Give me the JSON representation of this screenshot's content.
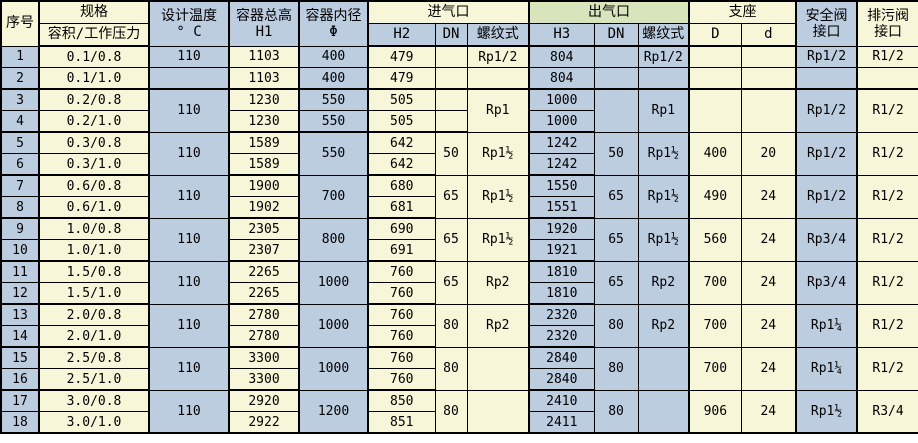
{
  "colors": {
    "cell_yellow": "#F8F6D8",
    "cell_blue": "#BDCDE0",
    "header_green": "#D8E4BC",
    "border": "#000000"
  },
  "table": {
    "header": {
      "serial": "序号",
      "spec_group": "规格",
      "spec_sub": "容积/工作压力",
      "temp_line1": "设计温度",
      "temp_line2": "° C",
      "height_line1": "容器总高",
      "height_line2": "H1",
      "diameter_line1": "容器内径",
      "diameter_line2": "Φ",
      "inlet_group": "进气口",
      "inlet_h2": "H2",
      "inlet_dn": "DN",
      "inlet_thread": "螺纹式",
      "outlet_group": "出气口",
      "outlet_h3": "H3",
      "outlet_dn": "DN",
      "outlet_thread": "螺纹式",
      "support_group": "支座",
      "support_D": "D",
      "support_d": "d",
      "safety_line1": "安全阀",
      "safety_line2": "接口",
      "drain_line1": "排污阀",
      "drain_line2": "接口"
    },
    "pairs": [
      {
        "merge_group": false,
        "merge_phi": false,
        "unmerged_keys": [
          "temp",
          "dn_in",
          "thread_in",
          "dn_out",
          "thread_out",
          "D",
          "d",
          "safety",
          "drain"
        ],
        "temp": "110",
        "dn_in": "",
        "thread_in": "Rp1/2",
        "dn_out": "",
        "thread_out": "Rp1/2",
        "D": "",
        "d": "",
        "safety": "Rp1/2",
        "drain": "R1/2",
        "rows": [
          {
            "no": "1",
            "spec": "0.1/0.8",
            "h1": "1103",
            "phi": "400",
            "h2": "479",
            "h3": "804"
          },
          {
            "no": "2",
            "spec": "0.1/1.0",
            "h1": "1103",
            "phi": "400",
            "h2": "479",
            "h3": "804"
          }
        ]
      },
      {
        "merge_group": true,
        "merge_phi": false,
        "unmerged_keys": [
          "dn_in"
        ],
        "temp": "110",
        "dn_in": "",
        "thread_in": "Rp1",
        "dn_out": "",
        "thread_out": "Rp1",
        "D": "",
        "d": "",
        "safety": "Rp1/2",
        "drain": "R1/2",
        "rows": [
          {
            "no": "3",
            "spec": "0.2/0.8",
            "h1": "1230",
            "phi": "550",
            "h2": "505",
            "h3": "1000"
          },
          {
            "no": "4",
            "spec": "0.2/1.0",
            "h1": "1230",
            "phi": "550",
            "h2": "505",
            "h3": "1000"
          }
        ]
      },
      {
        "merge_group": true,
        "merge_phi": true,
        "unmerged_keys": [],
        "phi": "550",
        "temp": "110",
        "dn_in": "50",
        "thread_in": "Rp1½",
        "dn_out": "50",
        "thread_out": "Rp1½",
        "D": "400",
        "d": "20",
        "safety": "Rp1/2",
        "drain": "R1/2",
        "rows": [
          {
            "no": "5",
            "spec": "0.3/0.8",
            "h1": "1589",
            "h2": "642",
            "h3": "1242"
          },
          {
            "no": "6",
            "spec": "0.3/1.0",
            "h1": "1589",
            "h2": "642",
            "h3": "1242"
          }
        ]
      },
      {
        "merge_group": true,
        "merge_phi": true,
        "unmerged_keys": [],
        "phi": "700",
        "temp": "110",
        "dn_in": "65",
        "thread_in": "Rp1½",
        "dn_out": "65",
        "thread_out": "Rp1½",
        "D": "490",
        "d": "24",
        "safety": "Rp1/2",
        "drain": "R1/2",
        "rows": [
          {
            "no": "7",
            "spec": "0.6/0.8",
            "h1": "1900",
            "h2": "680",
            "h3": "1550"
          },
          {
            "no": "8",
            "spec": "0.6/1.0",
            "h1": "1902",
            "h2": "681",
            "h3": "1551"
          }
        ]
      },
      {
        "merge_group": true,
        "merge_phi": true,
        "unmerged_keys": [],
        "phi": "800",
        "temp": "110",
        "dn_in": "65",
        "thread_in": "Rp1½",
        "dn_out": "65",
        "thread_out": "Rp1½",
        "D": "560",
        "d": "24",
        "safety": "Rp3/4",
        "drain": "R1/2",
        "rows": [
          {
            "no": "9",
            "spec": "1.0/0.8",
            "h1": "2305",
            "h2": "690",
            "h3": "1920"
          },
          {
            "no": "10",
            "spec": "1.0/1.0",
            "h1": "2307",
            "h2": "691",
            "h3": "1921"
          }
        ]
      },
      {
        "merge_group": true,
        "merge_phi": true,
        "unmerged_keys": [],
        "phi": "1000",
        "temp": "110",
        "dn_in": "65",
        "thread_in": "Rp2",
        "dn_out": "65",
        "thread_out": "Rp2",
        "D": "700",
        "d": "24",
        "safety": "Rp3/4",
        "drain": "R1/2",
        "rows": [
          {
            "no": "11",
            "spec": "1.5/0.8",
            "h1": "2265",
            "h2": "760",
            "h3": "1810"
          },
          {
            "no": "12",
            "spec": "1.5/1.0",
            "h1": "2265",
            "h2": "760",
            "h3": "1810"
          }
        ]
      },
      {
        "merge_group": true,
        "merge_phi": true,
        "unmerged_keys": [],
        "phi": "1000",
        "temp": "110",
        "dn_in": "80",
        "thread_in": "Rp2",
        "dn_out": "80",
        "thread_out": "Rp2",
        "D": "700",
        "d": "24",
        "safety": "Rp1¼",
        "drain": "R1/2",
        "rows": [
          {
            "no": "13",
            "spec": "2.0/0.8",
            "h1": "2780",
            "h2": "760",
            "h3": "2320"
          },
          {
            "no": "14",
            "spec": "2.0/1.0",
            "h1": "2780",
            "h2": "760",
            "h3": "2320"
          }
        ]
      },
      {
        "merge_group": true,
        "merge_phi": true,
        "unmerged_keys": [],
        "phi": "1000",
        "temp": "110",
        "dn_in": "80",
        "thread_in": "",
        "dn_out": "80",
        "thread_out": "",
        "D": "700",
        "d": "24",
        "safety": "Rp1¼",
        "drain": "R1/2",
        "rows": [
          {
            "no": "15",
            "spec": "2.5/0.8",
            "h1": "3300",
            "h2": "760",
            "h3": "2840"
          },
          {
            "no": "16",
            "spec": "2.5/1.0",
            "h1": "3300",
            "h2": "760",
            "h3": "2840"
          }
        ]
      },
      {
        "merge_group": true,
        "merge_phi": true,
        "unmerged_keys": [],
        "phi": "1200",
        "temp": "110",
        "dn_in": "80",
        "thread_in": "",
        "dn_out": "80",
        "thread_out": "",
        "D": "906",
        "d": "24",
        "safety": "Rp1½",
        "drain": "R3/4",
        "rows": [
          {
            "no": "17",
            "spec": "3.0/0.8",
            "h1": "2920",
            "h2": "850",
            "h3": "2410"
          },
          {
            "no": "18",
            "spec": "3.0/1.0",
            "h1": "2922",
            "h2": "851",
            "h3": "2411"
          }
        ]
      }
    ]
  }
}
